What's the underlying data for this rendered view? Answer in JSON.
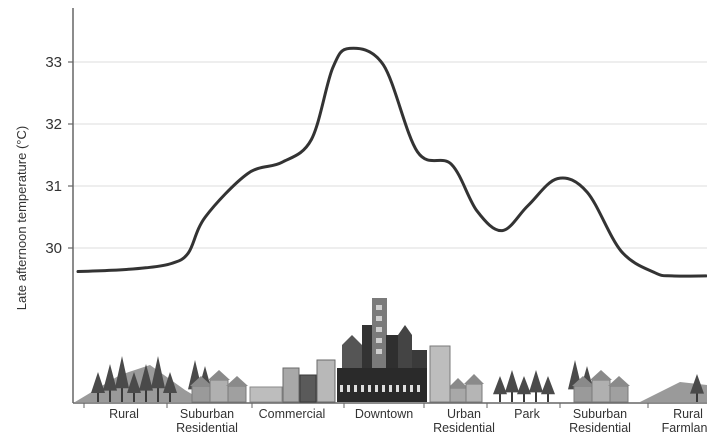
{
  "chart_data": {
    "type": "line",
    "title": "",
    "xlabel": "",
    "ylabel": "Late afternoon temperature (°C)",
    "ylim": [
      29.5,
      33.4
    ],
    "yticks": [
      30,
      31,
      32,
      33
    ],
    "grid": true,
    "categories": [
      {
        "lines": [
          "Rural"
        ]
      },
      {
        "lines": [
          "Suburban",
          "Residential"
        ]
      },
      {
        "lines": [
          "Commercial"
        ]
      },
      {
        "lines": [
          "Downtown"
        ]
      },
      {
        "lines": [
          "Urban",
          "Residential"
        ]
      },
      {
        "lines": [
          "Park"
        ]
      },
      {
        "lines": [
          "Suburban",
          "Residential"
        ]
      },
      {
        "lines": [
          "Rural",
          "Farmland"
        ]
      }
    ],
    "series": [
      {
        "x": [
          0,
          0.4,
          0.8,
          1.1,
          1.3,
          1.5,
          2.0,
          2.4,
          2.75,
          3.0,
          3.2,
          3.6,
          4.0,
          4.4,
          4.7,
          5.0,
          5.3,
          5.65,
          6.0,
          6.4,
          6.8,
          7.0,
          7.4
        ],
        "values": [
          29.62,
          29.64,
          29.68,
          29.75,
          29.92,
          30.5,
          31.2,
          31.38,
          31.75,
          32.9,
          33.22,
          32.95,
          31.55,
          31.35,
          30.6,
          30.28,
          30.68,
          31.12,
          30.9,
          29.95,
          29.6,
          29.55,
          29.55
        ]
      }
    ],
    "colors": {
      "line": "#333333",
      "grid": "#dddddd",
      "axis": "#666666"
    }
  }
}
